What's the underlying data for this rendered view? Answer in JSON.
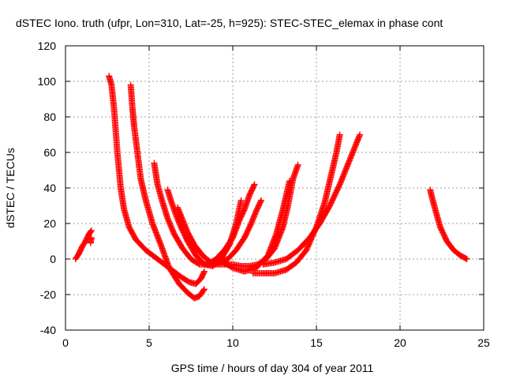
{
  "chart_data": {
    "type": "scatter",
    "title": "dSTEC Iono. truth (ufpr, Lon=310, Lat=-25, h=925): STEC-STEC_elemax in phase cont",
    "xlabel": "GPS time / hours of day 304 of year 2011",
    "ylabel": "dSTEC  / TECUs",
    "xlim": [
      0,
      25
    ],
    "ylim": [
      -40,
      120
    ],
    "xticks": [
      0,
      5,
      10,
      15,
      20,
      25
    ],
    "xtick_labels": [
      "0",
      "5",
      "10",
      "15",
      "20",
      "25"
    ],
    "yticks": [
      -40,
      -20,
      0,
      20,
      40,
      60,
      80,
      100,
      120
    ],
    "ytick_labels": [
      "-40",
      "-20",
      "0",
      "20",
      "40",
      "60",
      "80",
      "100",
      "120"
    ],
    "grid": true,
    "legend": "none",
    "marker": "+",
    "color": "#ff0000",
    "series": [
      {
        "x": [
          0.6,
          0.8,
          1.0,
          1.2,
          1.4,
          1.55
        ],
        "y": [
          0,
          3,
          7,
          10,
          14,
          16
        ]
      },
      {
        "x": [
          1.5,
          1.55
        ],
        "y": [
          9,
          12
        ]
      },
      {
        "x": [
          2.6,
          2.75,
          2.9,
          3.1,
          3.3,
          3.5,
          3.8,
          4.2,
          4.8,
          5.5,
          6.2,
          6.9,
          7.4,
          7.8,
          8.1,
          8.3
        ],
        "y": [
          103,
          98,
          85,
          60,
          40,
          28,
          18,
          11,
          5,
          0,
          -5,
          -10,
          -13,
          -14,
          -11,
          -7
        ]
      },
      {
        "x": [
          3.9,
          4.0,
          4.1,
          4.3,
          4.5,
          4.8,
          5.2,
          5.7,
          6.2,
          6.8,
          7.3,
          7.7,
          8.0,
          8.3
        ],
        "y": [
          98,
          85,
          75,
          60,
          45,
          33,
          20,
          8,
          -5,
          -14,
          -19,
          -22,
          -21,
          -17
        ]
      },
      {
        "x": [
          5.3,
          5.5,
          5.8,
          6.1,
          6.5,
          7.0,
          7.5,
          8.0,
          8.5,
          9.0,
          9.5,
          10.0,
          10.4,
          10.7,
          11.0,
          11.3
        ],
        "y": [
          54,
          42,
          32,
          23,
          14,
          6,
          0,
          -3,
          -3,
          0,
          5,
          12,
          22,
          28,
          36,
          42
        ]
      },
      {
        "x": [
          6.1,
          6.3,
          6.6,
          6.9,
          7.3,
          7.8,
          8.3,
          8.8,
          9.3,
          9.8,
          10.2,
          10.5
        ],
        "y": [
          39,
          33,
          25,
          18,
          10,
          2,
          -3,
          -4,
          0,
          8,
          20,
          33
        ]
      },
      {
        "x": [
          6.7,
          7.0,
          7.3,
          7.7,
          8.2,
          8.7,
          9.2,
          9.7,
          10.2,
          10.7,
          11.1,
          11.4,
          11.7
        ],
        "y": [
          29,
          22,
          15,
          8,
          2,
          -2,
          -2,
          0,
          5,
          12,
          20,
          27,
          33
        ]
      },
      {
        "x": [
          8.5,
          9.0,
          9.5,
          10.0,
          10.5,
          11.0,
          11.5,
          12.0,
          12.5,
          13.0,
          13.3,
          13.6,
          13.9
        ],
        "y": [
          -3,
          -3,
          -3,
          -3,
          -4,
          -4,
          -3,
          0,
          6,
          18,
          30,
          45,
          53
        ]
      },
      {
        "x": [
          9.3,
          10.0,
          10.7,
          11.4,
          12.1,
          12.6,
          13.0,
          13.4
        ],
        "y": [
          -1,
          -5,
          -7,
          -5,
          2,
          14,
          28,
          44
        ]
      },
      {
        "x": [
          11.2,
          11.8,
          12.5,
          13.2,
          13.8,
          14.4,
          15.0,
          15.5,
          15.9,
          16.2,
          16.4
        ],
        "y": [
          -8,
          -8,
          -8,
          -6,
          -2,
          5,
          18,
          32,
          48,
          60,
          70
        ]
      },
      {
        "x": [
          11.8,
          12.5,
          13.2,
          13.9,
          14.6,
          15.2,
          15.8,
          16.4,
          17.0,
          17.6
        ],
        "y": [
          -3,
          -2,
          0,
          5,
          12,
          20,
          30,
          42,
          56,
          70
        ]
      },
      {
        "x": [
          21.8,
          21.9,
          22.1,
          22.4,
          22.8,
          23.2,
          23.6,
          24.0
        ],
        "y": [
          39,
          35,
          28,
          18,
          10,
          5,
          2,
          0
        ]
      }
    ]
  }
}
